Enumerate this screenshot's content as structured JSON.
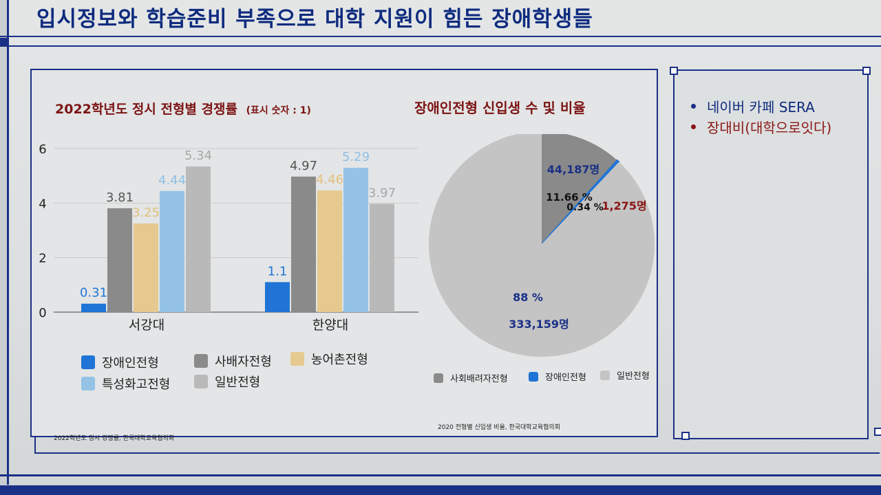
{
  "slide": {
    "title": "입시정보와 학습준비 부족으로 대학 지원이 힘든 장애학생들"
  },
  "external_links": [
    {
      "label": "네이버 카페 SERA",
      "color": "#1a2f86"
    },
    {
      "label": "장대비(대학으로잇다)",
      "color": "#8b1515"
    }
  ],
  "colors": {
    "disabled": "#1f74d6",
    "social": "#8a8a8a",
    "rural": "#e5c98e",
    "special": "#94c3e6",
    "general": "#b9b9b9",
    "title_red": "#7c1414",
    "navy": "#1a2f86"
  },
  "chart_data": [
    {
      "type": "bar",
      "title": "2022학년도 정시 전형별 경쟁률",
      "subtitle": "(표시 숫자 : 1)",
      "categories": [
        "서강대",
        "한양대"
      ],
      "series": [
        {
          "name": "장애인전형",
          "values": [
            0.31,
            1.1
          ],
          "labels": [
            "0.31",
            "1.1"
          ]
        },
        {
          "name": "사배자전형",
          "values": [
            3.81,
            4.97
          ],
          "labels": [
            "3.81",
            "4.97"
          ]
        },
        {
          "name": "농어촌전형",
          "values": [
            3.25,
            4.46
          ],
          "labels": [
            "3.25",
            "4.46"
          ]
        },
        {
          "name": "특성화고전형",
          "values": [
            4.44,
            5.29
          ],
          "labels": [
            "4.44",
            "5.29"
          ]
        },
        {
          "name": "일반전형",
          "values": [
            5.34,
            3.97
          ],
          "labels": [
            "5.34",
            "3.97"
          ]
        }
      ],
      "yticks": [
        "0",
        "2",
        "4",
        "6"
      ],
      "ylim": [
        0,
        6
      ],
      "grid": true,
      "legend_position": "bottom",
      "source": "2022학년도 정시 경쟁률, 한국대학교육협의회"
    },
    {
      "type": "pie",
      "title": "장애인전형 신입생 수 및 비율",
      "slices": [
        {
          "name": "사회배려자전형",
          "value": 11.66,
          "pct_label": "11.66 %",
          "count_label": "44,187명"
        },
        {
          "name": "장애인전형",
          "value": 0.34,
          "pct_label": "0.34 %",
          "count_label": "1,275명"
        },
        {
          "name": "일반전형",
          "value": 88,
          "pct_label": "88 %",
          "count_label": "333,159명"
        }
      ],
      "legend_position": "bottom",
      "source": "2020 전형별 신입생 비율, 한국대학교육협의회"
    }
  ]
}
